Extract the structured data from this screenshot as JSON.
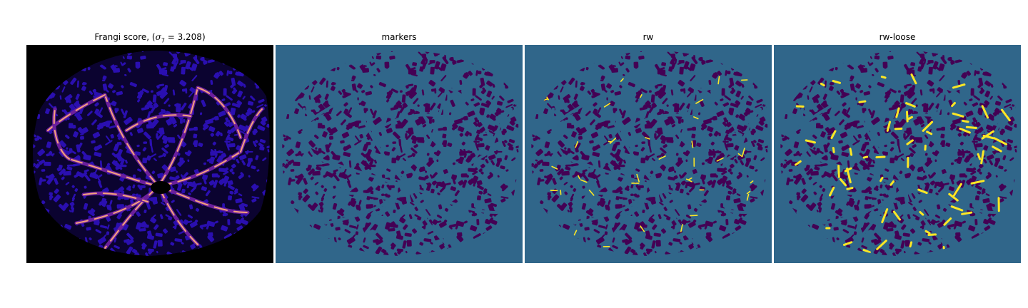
{
  "figure": {
    "panels": [
      {
        "title_prefix": "Frangi score, (",
        "title_symbol": "σ",
        "title_subscript": "7",
        "title_suffix": " = 3.208)",
        "colormap": "magma",
        "background_color": "#000000",
        "vessel_color_low": "#2a0fb0",
        "vessel_color_high": "#f5a37a"
      },
      {
        "title": "markers",
        "colormap": "viridis",
        "background_color": "#30668a",
        "foreground_color": "#440154"
      },
      {
        "title": "rw",
        "colormap": "viridis",
        "background_color": "#30668a",
        "foreground_color": "#440154",
        "highlight_color": "#fde725"
      },
      {
        "title": "rw-loose",
        "colormap": "viridis",
        "background_color": "#30668a",
        "foreground_color": "#440154",
        "highlight_color": "#fde725"
      }
    ]
  }
}
